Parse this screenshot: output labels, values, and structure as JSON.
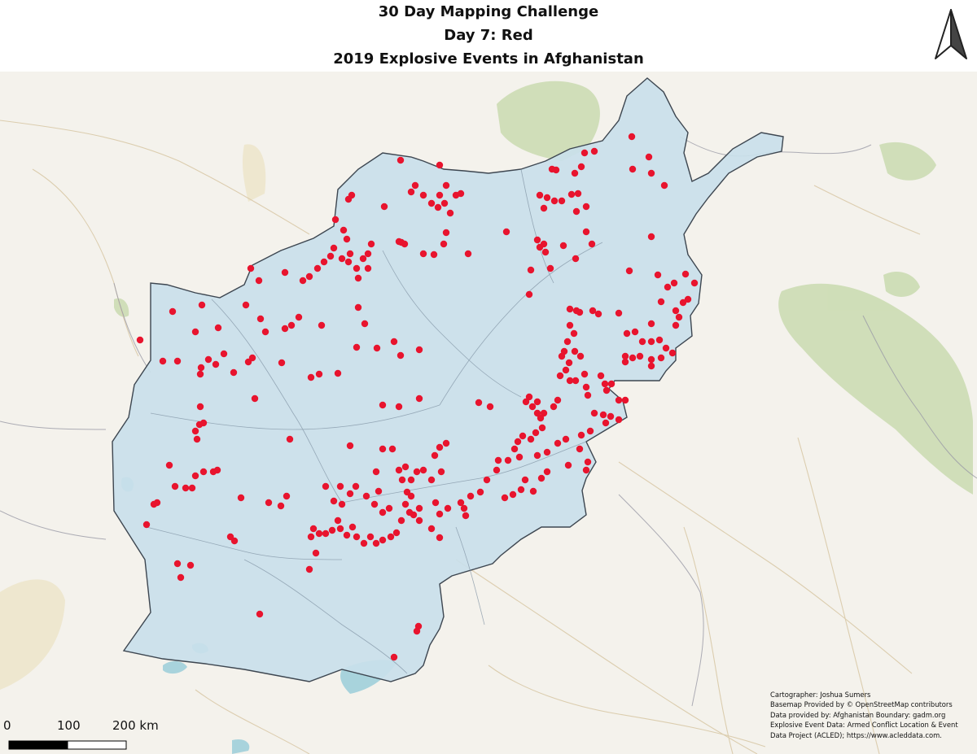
{
  "title": {
    "line1": "30 Day Mapping Challenge",
    "line2": "Day 7: Red",
    "line3": "2019 Explosive Events in Afghanistan"
  },
  "scale": {
    "labels": [
      "0",
      "100",
      "200 km"
    ]
  },
  "credits": [
    "Cartographer: Joshua Sumers",
    "Basemap Provided by © OpenStreetMap contributors",
    "Data provided by: Afghanistan Boundary: gadm.org",
    "Explosive Event Data: Armed Conflict Location & Event",
    "Data Project (ACLED); https://www.acleddata.com."
  ],
  "colors": {
    "country_fill": "#c9dfea",
    "country_stroke": "#3d4650",
    "event_dot": "#e8142e",
    "basemap": "#f4f2ec",
    "water": "#a8d3dc",
    "terrain_green": "#c9dbb0"
  },
  "icons": {
    "north_arrow": "north-arrow-icon"
  }
}
